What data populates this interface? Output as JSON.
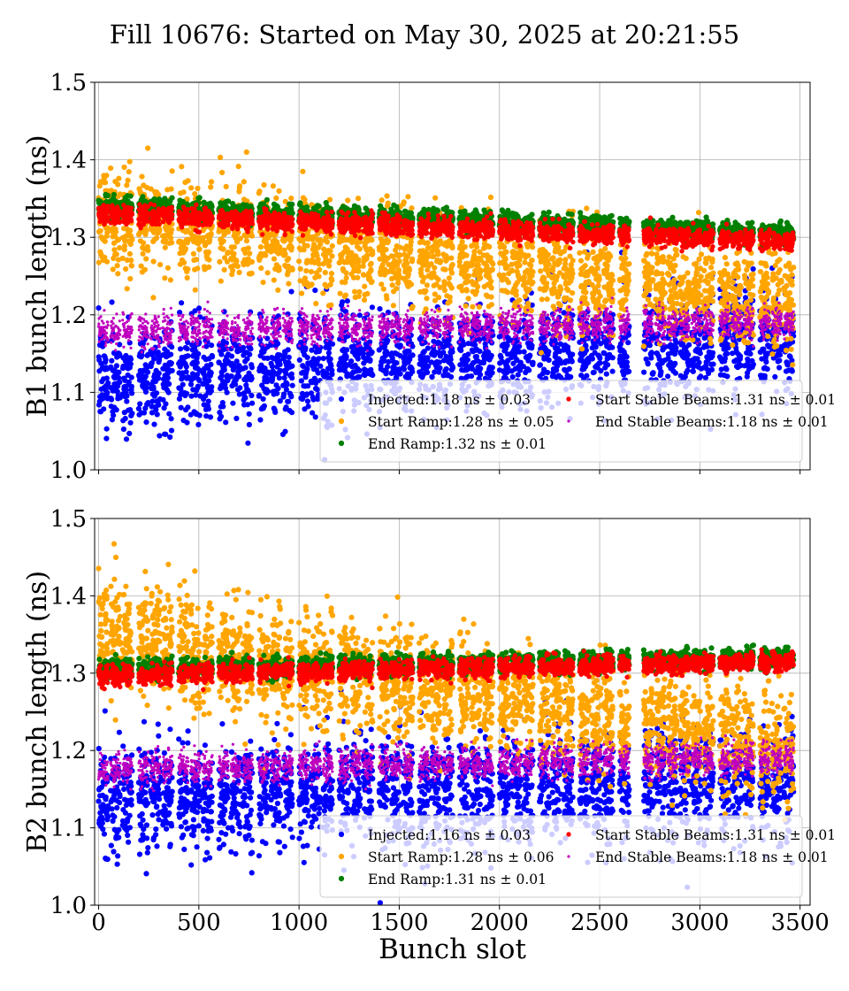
{
  "title": "Fill 10676: Started on May 30, 2025 at 20:21:55",
  "colors": {
    "injected": "#0000ff",
    "start_ramp": "#ffa500",
    "end_ramp": "#008000",
    "start_stable": "#ff0000",
    "end_stable": "#bf00bf",
    "grid": "#b0b0b0"
  },
  "chart_data": [
    {
      "type": "scatter",
      "panel": "top",
      "ylabel": "B1 bunch length (ns)",
      "xlabel": "",
      "xlim": [
        -20,
        3550
      ],
      "ylim": [
        1.0,
        1.5
      ],
      "xticks": [
        0,
        500,
        1000,
        1500,
        2000,
        2500,
        3000,
        3500
      ],
      "xtick_labels_visible": false,
      "yticks": [
        "1.0",
        "1.1",
        "1.2",
        "1.3",
        "1.4",
        "1.5"
      ],
      "grid": true,
      "legend_position": "lower-right",
      "train_slots": [
        0,
        60,
        120,
        200,
        260,
        320,
        400,
        460,
        520,
        600,
        660,
        720,
        800,
        860,
        920,
        1000,
        1060,
        1120,
        1200,
        1260,
        1320,
        1400,
        1460,
        1520,
        1600,
        1660,
        1720,
        1800,
        1860,
        1920,
        2000,
        2060,
        2120,
        2200,
        2260,
        2320,
        2400,
        2460,
        2520,
        2600,
        2720,
        2780,
        2840,
        2900,
        2960,
        3020,
        3100,
        3160,
        3220,
        3300,
        3360,
        3420
      ],
      "series": [
        {
          "name": "Injected",
          "legend": "Injected:1.18 ns ± 0.03",
          "color": "#0000ff",
          "start": 1.12,
          "end": 1.17,
          "spread": 0.032,
          "size": 3.1
        },
        {
          "name": "Start Ramp",
          "legend": "Start Ramp:1.28 ns ± 0.05",
          "color": "#ffa500",
          "start": 1.325,
          "end": 1.215,
          "spread": 0.03,
          "size": 3.1
        },
        {
          "name": "End Ramp",
          "legend": "End Ramp:1.32 ns ± 0.01",
          "color": "#008000",
          "start": 1.34,
          "end": 1.305,
          "spread": 0.006,
          "size": 3.1
        },
        {
          "name": "Start Stable Beams",
          "legend": "Start Stable Beams:1.31 ns ± 0.01",
          "color": "#ff0000",
          "start": 1.33,
          "end": 1.295,
          "spread": 0.006,
          "size": 2.7
        },
        {
          "name": "End Stable Beams",
          "legend": "End Stable Beams:1.18 ns ± 0.01",
          "color": "#bf00bf",
          "start": 1.18,
          "end": 1.19,
          "spread": 0.01,
          "size": 1.6
        }
      ]
    },
    {
      "type": "scatter",
      "panel": "bottom",
      "ylabel": "B2 bunch length (ns)",
      "xlabel": "Bunch slot",
      "xlim": [
        -20,
        3550
      ],
      "ylim": [
        1.0,
        1.5
      ],
      "xticks": [
        0,
        500,
        1000,
        1500,
        2000,
        2500,
        3000,
        3500
      ],
      "xtick_labels": [
        "0",
        "500",
        "1000",
        "1500",
        "2000",
        "2500",
        "3000",
        "3500"
      ],
      "xtick_labels_visible": true,
      "yticks": [
        "1.0",
        "1.1",
        "1.2",
        "1.3",
        "1.4",
        "1.5"
      ],
      "grid": true,
      "legend_position": "lower-right",
      "train_slots": [
        0,
        60,
        120,
        200,
        260,
        320,
        400,
        460,
        520,
        600,
        660,
        720,
        800,
        860,
        920,
        1000,
        1060,
        1120,
        1200,
        1260,
        1320,
        1400,
        1460,
        1520,
        1600,
        1660,
        1720,
        1800,
        1860,
        1920,
        2000,
        2060,
        2120,
        2200,
        2260,
        2320,
        2400,
        2460,
        2520,
        2600,
        2720,
        2780,
        2840,
        2900,
        2960,
        3020,
        3100,
        3160,
        3220,
        3300,
        3360,
        3420
      ],
      "series": [
        {
          "name": "Injected",
          "legend": "Injected:1.16 ns ± 0.03",
          "color": "#0000ff",
          "start": 1.14,
          "end": 1.16,
          "spread": 0.034,
          "size": 3.1
        },
        {
          "name": "Start Ramp",
          "legend": "Start Ramp:1.28 ns ± 0.06",
          "color": "#ffa500",
          "start": 1.35,
          "end": 1.2,
          "spread": 0.035,
          "size": 3.1
        },
        {
          "name": "End Ramp",
          "legend": "End Ramp:1.31 ns ± 0.01",
          "color": "#008000",
          "start": 1.305,
          "end": 1.32,
          "spread": 0.006,
          "size": 3.1
        },
        {
          "name": "Start Stable Beams",
          "legend": "Start Stable Beams:1.31 ns ± 0.01",
          "color": "#ff0000",
          "start": 1.297,
          "end": 1.315,
          "spread": 0.006,
          "size": 2.7
        },
        {
          "name": "End Stable Beams",
          "legend": "End Stable Beams:1.18 ns ± 0.01",
          "color": "#bf00bf",
          "start": 1.175,
          "end": 1.19,
          "spread": 0.01,
          "size": 1.6
        }
      ]
    }
  ]
}
